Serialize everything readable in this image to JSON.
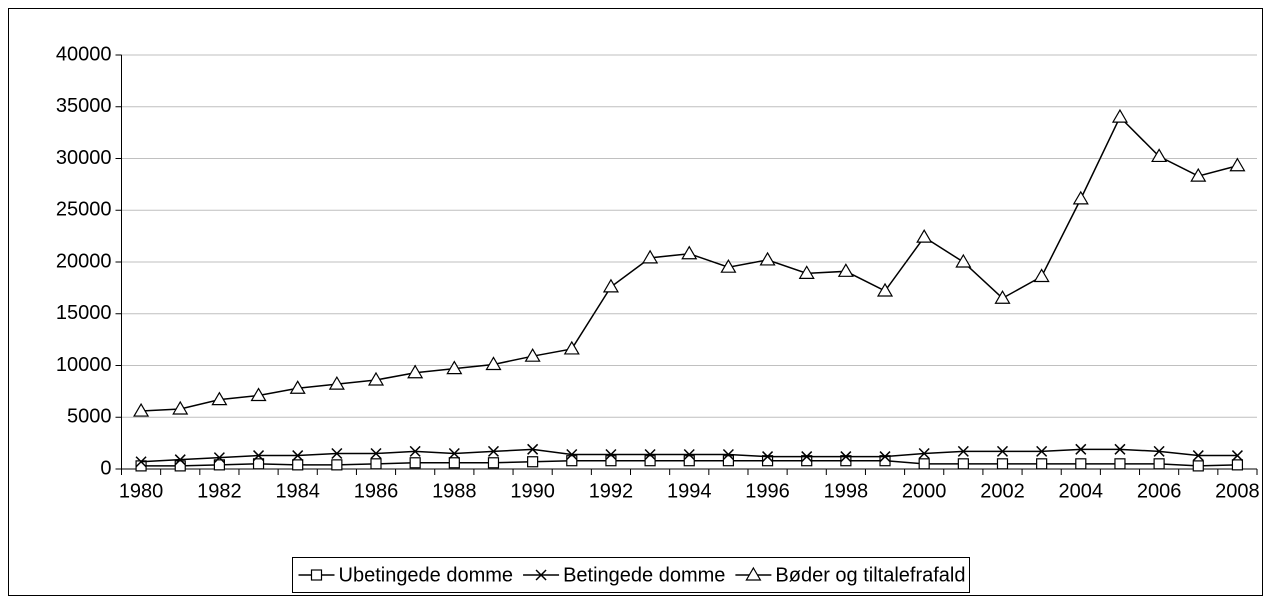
{
  "chart_data": {
    "type": "line",
    "categories": [
      "1980",
      null,
      "1982",
      null,
      "1984",
      null,
      "1986",
      null,
      "1988",
      null,
      "1990",
      null,
      "1992",
      null,
      "1994",
      null,
      "1996",
      null,
      "1998",
      null,
      "2000",
      null,
      "2002",
      null,
      "2004",
      null,
      "2006",
      null,
      "2008"
    ],
    "series": [
      {
        "name": "Ubetingede domme",
        "color": "#000000",
        "marker": "square",
        "values": [
          300,
          300,
          400,
          500,
          400,
          400,
          500,
          600,
          600,
          600,
          700,
          800,
          800,
          800,
          800,
          800,
          800,
          800,
          800,
          800,
          500,
          500,
          500,
          500,
          500,
          500,
          500,
          300,
          400
        ]
      },
      {
        "name": "Betingede domme",
        "color": "#000000",
        "marker": "x",
        "values": [
          700,
          900,
          1100,
          1300,
          1300,
          1500,
          1500,
          1700,
          1500,
          1700,
          1900,
          1400,
          1400,
          1400,
          1400,
          1400,
          1200,
          1200,
          1200,
          1200,
          1500,
          1700,
          1700,
          1700,
          1900,
          1900,
          1700,
          1300,
          1300
        ]
      },
      {
        "name": "Bøder og tiltalefrafald",
        "color": "#000000",
        "marker": "triangle",
        "values": [
          5600,
          5800,
          6700,
          7100,
          7800,
          8200,
          8600,
          9300,
          9700,
          10100,
          10900,
          11600,
          17600,
          20400,
          20800,
          19500,
          20200,
          18900,
          19100,
          17200,
          22400,
          20000,
          16500,
          18600,
          26100,
          34000,
          30200,
          28300,
          29300
        ]
      }
    ],
    "ylim": [
      0,
      40000
    ],
    "yticks": [
      0,
      5000,
      10000,
      15000,
      20000,
      25000,
      30000,
      35000,
      40000
    ],
    "grid": true,
    "legend": "bottom"
  }
}
